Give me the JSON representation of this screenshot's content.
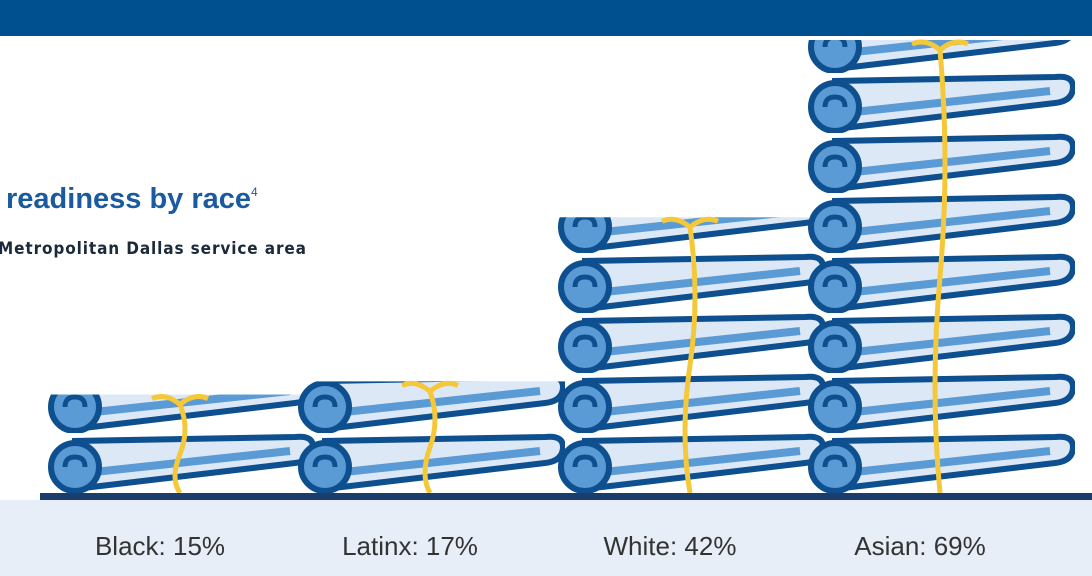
{
  "chart_data": {
    "type": "pictograph",
    "title": "readiness by race",
    "title_note": "4",
    "subtitle": "Metropolitan Dallas service area",
    "values": [
      15,
      17,
      42,
      69
    ],
    "value_labels": [
      "Black: 15%",
      "Latinx: 17%",
      "White: 42%",
      "Asian: 69%"
    ],
    "ylim": [
      0,
      69
    ],
    "color": "#5b9bd5"
  }
}
